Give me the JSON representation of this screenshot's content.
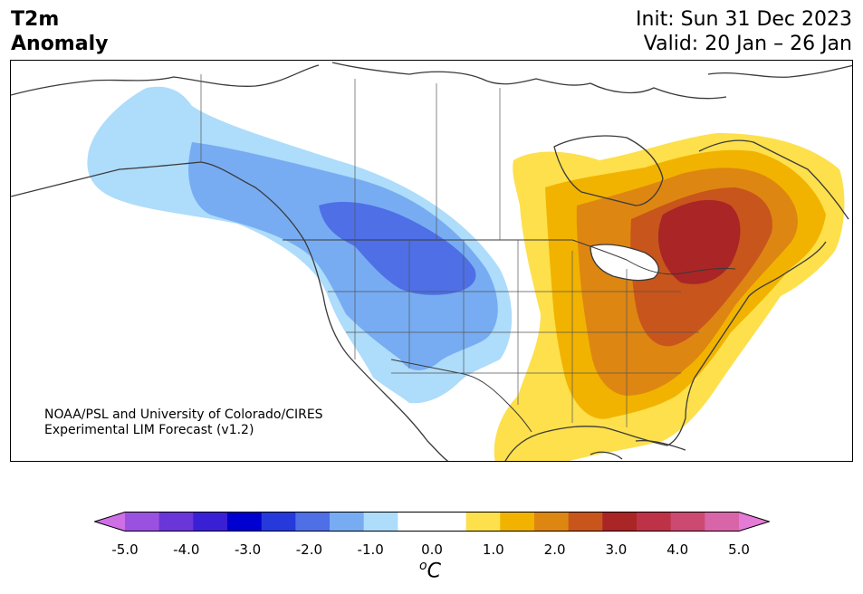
{
  "header": {
    "title_line1": "T2m",
    "title_line2": "Anomaly",
    "init": "Init: Sun 31 Dec 2023",
    "valid": "Valid: 20 Jan – 26 Jan"
  },
  "credit": {
    "line1": "NOAA/PSL and University of Colorado/CIRES",
    "line2": "Experimental LIM Forecast (v1.2)"
  },
  "colorbar": {
    "tick_labels": [
      "-5.0",
      "-4.0",
      "-3.0",
      "-2.0",
      "-1.0",
      "0.0",
      "1.0",
      "2.0",
      "3.0",
      "4.0",
      "5.0"
    ],
    "unit_symbol": "o",
    "unit_letter": "C",
    "colors": [
      "#cf6fe6",
      "#9a51df",
      "#6a35d9",
      "#3a20d4",
      "#0000d0",
      "#2639db",
      "#4e6fe6",
      "#77acf2",
      "#aedcfb",
      "#ffffff",
      "#ffffff",
      "#fde04b",
      "#f1b300",
      "#de8612",
      "#c8551c",
      "#a92526",
      "#be3248",
      "#cc4a72",
      "#d965a9",
      "#e57bd6"
    ]
  },
  "map": {
    "anomaly_colors": {
      "light_blue": "#aedcfb",
      "mid_blue": "#77acf2",
      "dark_blue": "#4e6fe6",
      "yellow": "#fde04b",
      "gold": "#f1b300",
      "orange": "#de8612",
      "dark_orange": "#c8551c",
      "red": "#a92526"
    }
  }
}
